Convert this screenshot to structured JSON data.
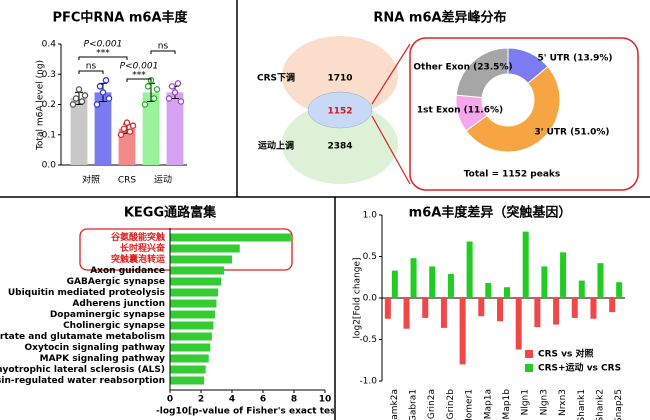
{
  "chart_data": [
    {
      "type": "bar",
      "title": "PFC中RNA m6A丰度",
      "ylabel": "Total m6A level (ng)",
      "categories": [
        "对照",
        null,
        "CRS",
        "运动",
        null
      ],
      "values": [
        0.22,
        0.24,
        0.12,
        0.24,
        0.24
      ],
      "errors": [
        0.02,
        0.03,
        0.015,
        0.03,
        0.02
      ],
      "points": [
        [
          0.2,
          0.22,
          0.25,
          0.21,
          0.23
        ],
        [
          0.2,
          0.26,
          0.24,
          0.28,
          0.22
        ],
        [
          0.1,
          0.12,
          0.14,
          0.11,
          0.13
        ],
        [
          0.2,
          0.26,
          0.28,
          0.22,
          0.25
        ],
        [
          0.22,
          0.26,
          0.24,
          0.27,
          0.21
        ]
      ],
      "colors": [
        "#c8c8c8",
        "#7a7af2",
        "#f28a8a",
        "#9af29a",
        "#d6a2f2"
      ],
      "point_colors": [
        "#555555",
        "#3333cc",
        "#d92b2b",
        "#22b022",
        "#9a44c8"
      ],
      "annotations": [
        "P<0.001",
        "***",
        "ns",
        "P<0.001",
        "***",
        "ns"
      ],
      "ylim": [
        0,
        0.4
      ],
      "yticks": [
        {
          "value": 0,
          "label": "0.0"
        },
        0.1,
        0.2,
        0.3,
        0.4
      ]
    },
    {
      "type": "venn",
      "title": "RNA m6A差异峰分布",
      "sets": [
        {
          "name": "CRS下调",
          "value": 1710,
          "color": "#f9d9c4"
        },
        {
          "name": "运动上调",
          "value": 2384,
          "color": "#d8efd0"
        }
      ],
      "intersection": {
        "value": 1152,
        "color": "#c7d9f6",
        "text_color": "#e01010"
      }
    },
    {
      "type": "pie",
      "labels": [
        "5' UTR (13.9%)",
        "3' UTR (51.0%)",
        "1st Exon (11.6%)",
        "Other Exon (23.5%)"
      ],
      "values": [
        13.9,
        51.0,
        11.6,
        23.5
      ],
      "colors": [
        "#7b7bf2",
        "#f7a542",
        "#f6a6ec",
        "#a6a6a6"
      ],
      "annotation": "Total = 1152 peaks",
      "box_color": "#e02020"
    },
    {
      "type": "hbar",
      "title": "KEGG通路富集",
      "xlabel": "-log10[p-value of Fisher's exact test]",
      "categories": [
        "谷氨酸能突触",
        "长时程兴奋",
        "突触囊泡转运",
        "Axon guidance",
        "GABAergic synapse",
        "Ubiquitin mediated proteolysis",
        "Adherens junction",
        "Dopaminergic synapse",
        "Cholinergic synapse",
        "Alanine, aspartate and glutamate metabolism",
        "Oxytocin signaling pathway",
        "MAPK signaling pathway",
        "Amyotrophic lateral sclerosis (ALS)",
        "Vasopressin-regulated water reabsorption"
      ],
      "values": [
        7.8,
        4.5,
        4.0,
        3.5,
        3.3,
        3.1,
        3.0,
        2.9,
        2.8,
        2.7,
        2.6,
        2.5,
        2.3,
        2.2
      ],
      "color": "#33cc33",
      "label_colors": [
        "#e02020",
        "#e02020",
        "#e02020",
        "#000000",
        "#000000",
        "#000000",
        "#000000",
        "#000000",
        "#000000",
        "#000000",
        "#000000",
        "#000000",
        "#000000",
        "#000000"
      ],
      "xlim": [
        0,
        10
      ],
      "xticks": [
        0,
        2,
        4,
        6,
        8,
        10
      ]
    },
    {
      "type": "grouped_bar",
      "title": "m6A丰度差异（突触基因）",
      "ylabel": "log2[Fold change]",
      "categories": [
        "Camk2a",
        "Gabra1",
        "Grin2a",
        "Grin2b",
        "Homer1",
        "Map1a",
        "Map1b",
        "Nlgn1",
        "Nlgn3",
        "Nrxn3",
        "Shank1",
        "Shank2",
        "Snap25"
      ],
      "series": [
        {
          "name": "CRS vs 对照",
          "color": "#f04848",
          "values": [
            -0.25,
            -0.37,
            -0.24,
            -0.36,
            -0.8,
            -0.22,
            -0.28,
            -0.62,
            -0.35,
            -0.32,
            -0.24,
            -0.25,
            -0.17
          ]
        },
        {
          "name": "CRS+运动 vs CRS",
          "color": "#22cc22",
          "values": [
            0.33,
            0.48,
            0.38,
            0.29,
            0.68,
            0.18,
            0.13,
            0.8,
            0.38,
            0.55,
            0.21,
            0.42,
            0.19
          ]
        }
      ],
      "ylim": [
        -1,
        1
      ],
      "yticks": [
        {
          "value": -1,
          "label": "-1.0"
        },
        -0.5,
        {
          "value": 0,
          "label": "0.0"
        },
        0.5,
        {
          "value": 1,
          "label": "1.0"
        }
      ],
      "legend": "lower right"
    }
  ]
}
